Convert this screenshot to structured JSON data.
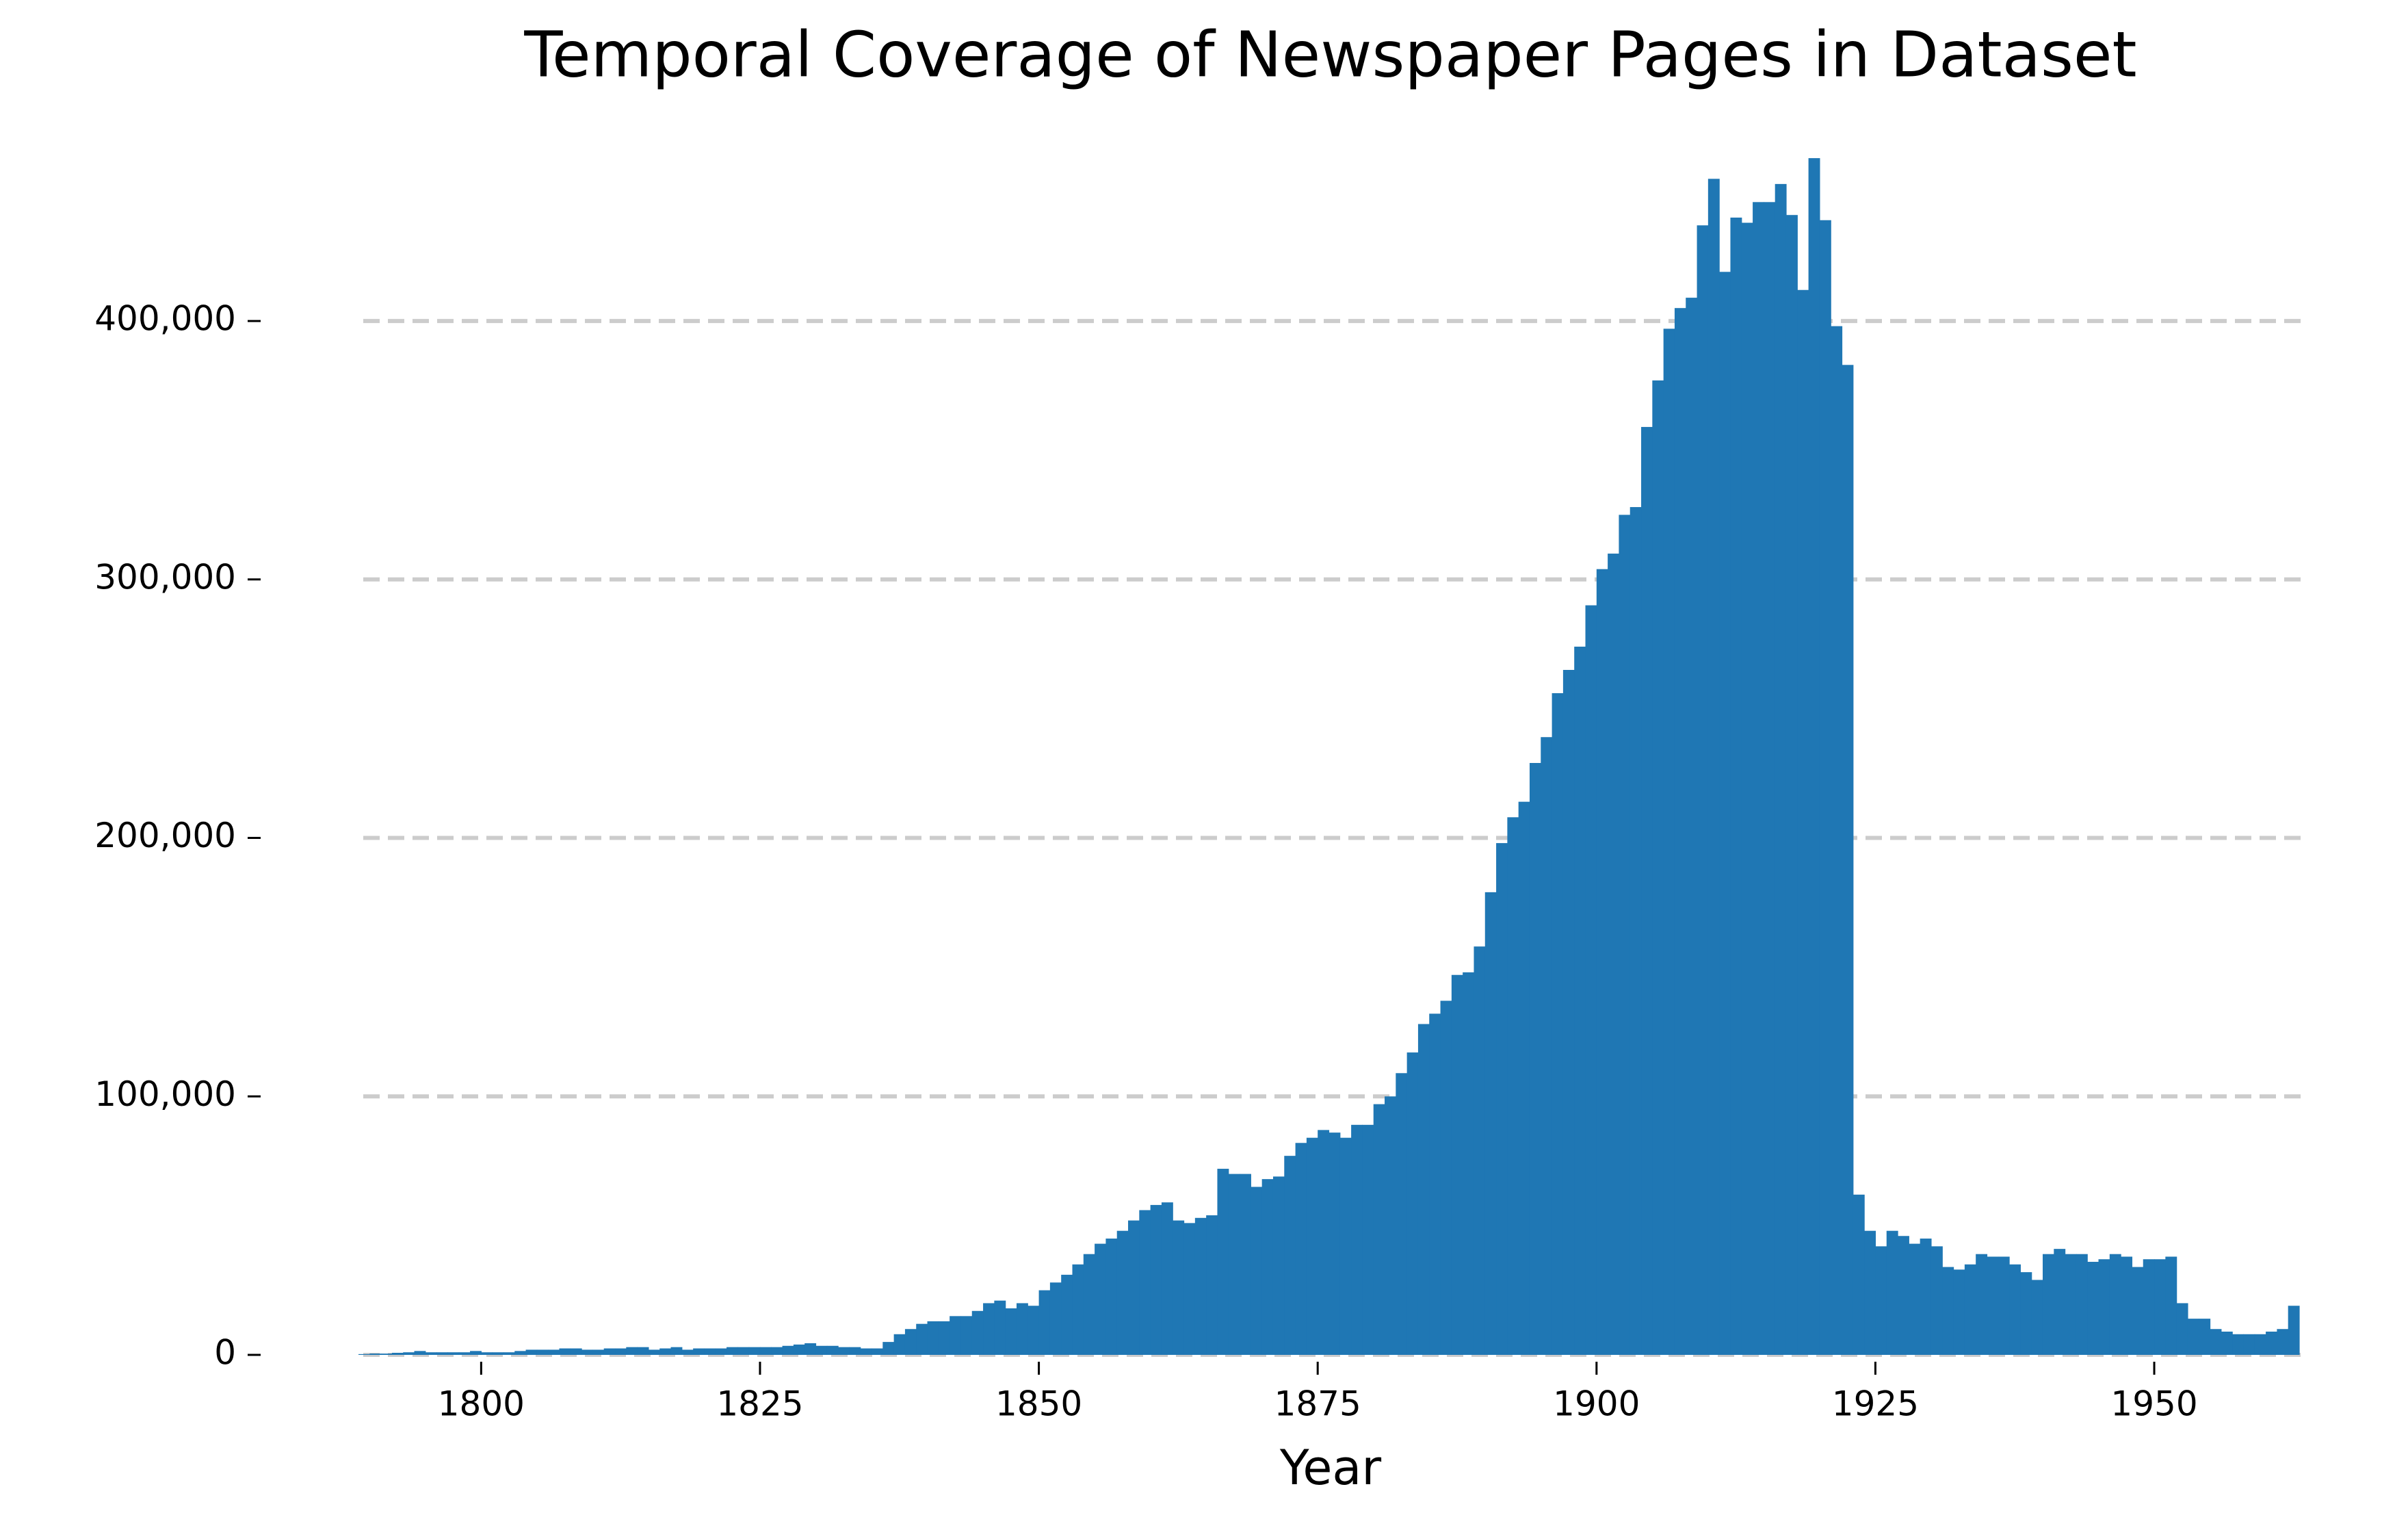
{
  "chart_data": {
    "type": "histogram",
    "title": "Temporal Coverage of Newspaper Pages in Dataset",
    "xlabel": "Year",
    "color": "#1f77b4",
    "grid": true,
    "bins": [
      1789,
      1790,
      1791,
      1792,
      1793,
      1794,
      1795,
      1796,
      1797,
      1798,
      1799,
      1800,
      1801,
      1802,
      1803,
      1804,
      1805,
      1806,
      1807,
      1808,
      1809,
      1810,
      1811,
      1812,
      1813,
      1814,
      1815,
      1816,
      1817,
      1818,
      1819,
      1820,
      1821,
      1822,
      1823,
      1824,
      1825,
      1826,
      1827,
      1828,
      1829,
      1830,
      1831,
      1832,
      1833,
      1834,
      1835,
      1836,
      1837,
      1838,
      1839,
      1840,
      1841,
      1842,
      1843,
      1844,
      1845,
      1846,
      1847,
      1848,
      1849,
      1850,
      1851,
      1852,
      1853,
      1854,
      1855,
      1856,
      1857,
      1858,
      1859,
      1860,
      1861,
      1862,
      1863,
      1864,
      1865,
      1866,
      1867,
      1868,
      1869,
      1870,
      1871,
      1872,
      1873,
      1874,
      1875,
      1876,
      1877,
      1878,
      1879,
      1880,
      1881,
      1882,
      1883,
      1884,
      1885,
      1886,
      1887,
      1888,
      1889,
      1890,
      1891,
      1892,
      1893,
      1894,
      1895,
      1896,
      1897,
      1898,
      1899,
      1900,
      1901,
      1902,
      1903,
      1904,
      1905,
      1906,
      1907,
      1908,
      1909,
      1910,
      1911,
      1912,
      1913,
      1914,
      1915,
      1916,
      1917,
      1918,
      1919,
      1920,
      1921,
      1922,
      1923,
      1924,
      1925,
      1926,
      1927,
      1928,
      1929,
      1930,
      1931,
      1932,
      1933,
      1934,
      1935,
      1936,
      1937,
      1938,
      1939,
      1940,
      1941,
      1942,
      1943,
      1944,
      1945,
      1946,
      1947,
      1948,
      1949,
      1950,
      1951,
      1952,
      1953,
      1954,
      1955,
      1956,
      1957,
      1958,
      1959,
      1960,
      1961,
      1962,
      1963
    ],
    "values": [
      300,
      500,
      500,
      800,
      1000,
      1500,
      1000,
      1000,
      1000,
      1000,
      1500,
      1000,
      1000,
      1000,
      1500,
      2000,
      2000,
      2000,
      2500,
      2500,
      2000,
      2000,
      2500,
      2500,
      3000,
      3000,
      2000,
      2500,
      3000,
      2000,
      2500,
      2500,
      2500,
      3000,
      3000,
      3000,
      3000,
      3000,
      3500,
      4000,
      4500,
      3500,
      3500,
      3000,
      3000,
      2500,
      2500,
      5000,
      8000,
      10000,
      12000,
      13000,
      13000,
      15000,
      15000,
      17000,
      20000,
      21000,
      18000,
      20000,
      19000,
      25000,
      28000,
      31000,
      35000,
      39000,
      43000,
      45000,
      48000,
      52000,
      56000,
      58000,
      59000,
      52000,
      51000,
      53000,
      54000,
      72000,
      70000,
      70000,
      65000,
      68000,
      69000,
      77000,
      82000,
      84000,
      87000,
      86000,
      84000,
      89000,
      89000,
      97000,
      100000,
      109000,
      117000,
      128000,
      132000,
      137000,
      147000,
      148000,
      158000,
      179000,
      198000,
      208000,
      214000,
      229000,
      239000,
      256000,
      265000,
      274000,
      290000,
      304000,
      310000,
      325000,
      328000,
      359000,
      377000,
      397000,
      405000,
      409000,
      437000,
      455000,
      419000,
      440000,
      438000,
      446000,
      446000,
      453000,
      441000,
      412000,
      463000,
      439000,
      398000,
      383000,
      62000,
      48000,
      42000,
      48000,
      46000,
      43000,
      45000,
      42000,
      34000,
      33000,
      35000,
      39000,
      38000,
      38000,
      35000,
      32000,
      29000,
      39000,
      41000,
      39000,
      39000,
      36000,
      37000,
      39000,
      38000,
      34000,
      37000,
      37000,
      38000,
      20000,
      14000,
      14000,
      10000,
      9000,
      8000,
      8000,
      8000,
      9000,
      10000,
      19000
    ],
    "xlim": [
      1789,
      1963
    ],
    "xticks": [
      1800,
      1825,
      1850,
      1875,
      1900,
      1925,
      1950
    ],
    "ylim": [
      0,
      485000
    ],
    "yticks": [
      0,
      {
        "value": 100000,
        "label": "100,000"
      },
      {
        "value": 200000,
        "label": "200,000"
      },
      {
        "value": 300000,
        "label": "300,000"
      },
      {
        "value": 400000,
        "label": "400,000"
      }
    ]
  }
}
